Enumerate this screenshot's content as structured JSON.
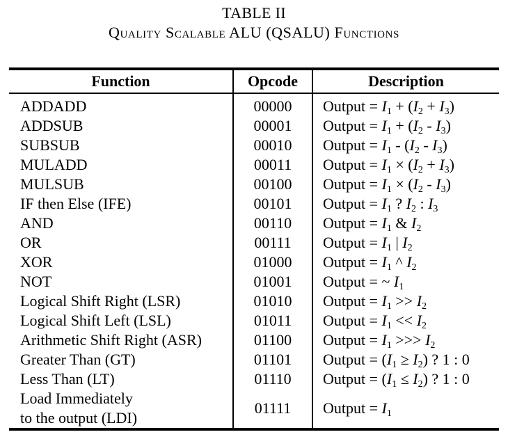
{
  "caption": {
    "label": "TABLE II",
    "title": "Quality Scalable ALU (QSALU) Functions"
  },
  "table": {
    "headers": [
      "Function",
      "Opcode",
      "Description"
    ],
    "rows": [
      {
        "function": "ADDADD",
        "opcode": "00000",
        "description": "Output = I1 + (I2 + I3)"
      },
      {
        "function": "ADDSUB",
        "opcode": "00001",
        "description": "Output = I1 + (I2 - I3)"
      },
      {
        "function": "SUBSUB",
        "opcode": "00010",
        "description": "Output = I1 - (I2 - I3)"
      },
      {
        "function": "MULADD",
        "opcode": "00011",
        "description": "Output = I1 × (I2 + I3)"
      },
      {
        "function": "MULSUB",
        "opcode": "00100",
        "description": "Output = I1 × (I2 - I3)"
      },
      {
        "function": "IF then Else (IFE)",
        "opcode": "00101",
        "description": "Output = I1 ? I2 : I3"
      },
      {
        "function": "AND",
        "opcode": "00110",
        "description": "Output = I1 & I2"
      },
      {
        "function": "OR",
        "opcode": "00111",
        "description": "Output = I1 | I2"
      },
      {
        "function": "XOR",
        "opcode": "01000",
        "description": "Output = I1 ^ I2"
      },
      {
        "function": "NOT",
        "opcode": "01001",
        "description": "Output = ~ I1"
      },
      {
        "function": "Logical Shift Right (LSR)",
        "opcode": "01010",
        "description": "Output = I1 >> I2"
      },
      {
        "function": "Logical Shift Left (LSL)",
        "opcode": "01011",
        "description": "Output = I1 << I2"
      },
      {
        "function": "Arithmetic Shift Right (ASR)",
        "opcode": "01100",
        "description": "Output = I1 >>> I2"
      },
      {
        "function": "Greater Than (GT)",
        "opcode": "01101",
        "description": "Output = (I1 ≥ I2) ? 1 : 0"
      },
      {
        "function": "Less Than (LT)",
        "opcode": "01110",
        "description": "Output = (I1 ≤ I2) ? 1 : 0"
      }
    ],
    "last_row": {
      "function_line1": "Load Immediately",
      "function_line2": "to the output (LDI)",
      "opcode": "01111",
      "description": "Output = I1"
    }
  }
}
